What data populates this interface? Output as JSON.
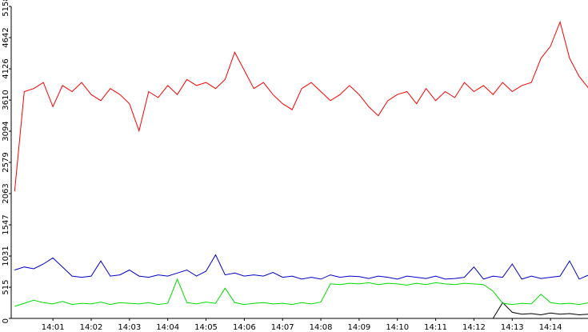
{
  "chart_data": {
    "type": "line",
    "x": [
      0,
      0.25,
      0.5,
      0.75,
      1,
      1.25,
      1.5,
      1.75,
      2,
      2.25,
      2.5,
      2.75,
      3,
      3.25,
      3.5,
      3.75,
      4,
      4.25,
      4.5,
      4.75,
      5,
      5.25,
      5.5,
      5.75,
      6,
      6.25,
      6.5,
      6.75,
      7,
      7.25,
      7.5,
      7.75,
      8,
      8.25,
      8.5,
      8.75,
      9,
      9.25,
      9.5,
      9.75,
      10,
      10.25,
      10.5,
      10.75,
      11,
      11.25,
      11.5,
      11.75,
      12,
      12.25,
      12.5,
      12.75,
      13,
      13.25,
      13.5,
      13.75,
      14,
      14.25,
      14.5,
      14.75,
      15
    ],
    "series": [
      {
        "color": "#ff0000",
        "values": [
          2100,
          3750,
          3800,
          3900,
          3500,
          3850,
          3750,
          3900,
          3700,
          3600,
          3800,
          3700,
          3550,
          3100,
          3750,
          3650,
          3850,
          3700,
          3950,
          3850,
          3900,
          3800,
          3950,
          4400,
          4100,
          3800,
          3900,
          3700,
          3550,
          3450,
          3800,
          3900,
          3750,
          3600,
          3700,
          3850,
          3700,
          3500,
          3350,
          3600,
          3700,
          3750,
          3550,
          3800,
          3600,
          3750,
          3650,
          3900,
          3750,
          3850,
          3700,
          3900,
          3750,
          3850,
          3900,
          4300,
          4500,
          4900,
          4300,
          4000,
          3800
        ]
      },
      {
        "color": "#0000cc",
        "values": [
          800,
          850,
          820,
          900,
          1000,
          850,
          700,
          680,
          700,
          950,
          700,
          720,
          800,
          700,
          680,
          720,
          700,
          750,
          800,
          700,
          780,
          1050,
          720,
          750,
          700,
          720,
          700,
          760,
          680,
          700,
          650,
          680,
          650,
          720,
          680,
          700,
          690,
          660,
          700,
          680,
          650,
          700,
          680,
          660,
          700,
          650,
          660,
          680,
          850,
          650,
          700,
          680,
          900,
          650,
          700,
          660,
          680,
          700,
          950,
          650,
          720
        ]
      },
      {
        "color": "#00dd00",
        "values": [
          200,
          250,
          300,
          260,
          240,
          280,
          230,
          250,
          240,
          270,
          230,
          260,
          250,
          240,
          260,
          230,
          250,
          650,
          260,
          240,
          270,
          250,
          500,
          260,
          230,
          250,
          260,
          240,
          250,
          230,
          260,
          240,
          270,
          570,
          560,
          580,
          570,
          590,
          560,
          580,
          570,
          550,
          580,
          560,
          590,
          570,
          560,
          580,
          570,
          560,
          450,
          250,
          230,
          250,
          240,
          400,
          260,
          240,
          250,
          230,
          260
        ]
      },
      {
        "color": "#000000",
        "values": [
          0,
          0,
          0,
          0,
          0,
          0,
          0,
          0,
          0,
          0,
          0,
          0,
          0,
          0,
          0,
          0,
          0,
          0,
          0,
          0,
          0,
          0,
          0,
          0,
          0,
          0,
          0,
          0,
          0,
          0,
          0,
          0,
          0,
          0,
          0,
          0,
          0,
          0,
          0,
          0,
          0,
          0,
          0,
          0,
          0,
          0,
          0,
          0,
          0,
          0,
          0,
          260,
          100,
          70,
          80,
          60,
          90,
          70,
          80,
          60,
          70
        ]
      }
    ],
    "xlim": [
      -0.09,
      14.98
    ],
    "xticks": [
      {
        "value": 1,
        "label": "14:01"
      },
      {
        "value": 2,
        "label": "14:02"
      },
      {
        "value": 3,
        "label": "14:03"
      },
      {
        "value": 4,
        "label": "14:04"
      },
      {
        "value": 5,
        "label": "14:05"
      },
      {
        "value": 6,
        "label": "14:06"
      },
      {
        "value": 7,
        "label": "14:07"
      },
      {
        "value": 8,
        "label": "14:08"
      },
      {
        "value": 9,
        "label": "14:09"
      },
      {
        "value": 10,
        "label": "14:10"
      },
      {
        "value": 11,
        "label": "14:11"
      },
      {
        "value": 12,
        "label": "14:12"
      },
      {
        "value": 13,
        "label": "14:13"
      },
      {
        "value": 14,
        "label": "14:14"
      }
    ],
    "ylim": [
      0,
      5158
    ],
    "yticks": [
      0,
      515,
      1031,
      1547,
      2063,
      2579,
      3094,
      3610,
      4126,
      4642,
      5158
    ]
  }
}
